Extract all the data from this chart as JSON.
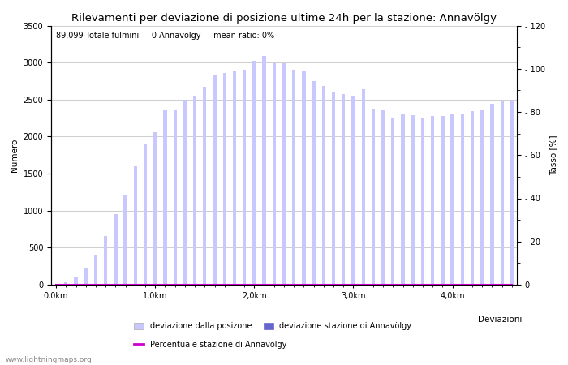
{
  "title": "Rilevamenti per deviazione di posizione ultime 24h per la stazione: Annavölgy",
  "subtitle": "89.099 Totale fulmini     0 Annavölgy     mean ratio: 0%",
  "ylabel_left": "Numero",
  "ylabel_right": "Tasso [%]",
  "watermark": "www.lightningmaps.org",
  "bar_total": [
    5,
    30,
    110,
    230,
    390,
    660,
    950,
    1220,
    1600,
    1900,
    2060,
    2350,
    2370,
    2500,
    2550,
    2670,
    2840,
    2860,
    2880,
    2900,
    3020,
    3090,
    2990,
    2990,
    2900,
    2890,
    2750,
    2680,
    2600,
    2570,
    2550,
    2640,
    2380,
    2360,
    2250,
    2310,
    2290,
    2260,
    2280,
    2280,
    2310,
    2310,
    2340,
    2360,
    2440,
    2490,
    2500
  ],
  "bar_station": [
    0,
    0,
    0,
    0,
    0,
    0,
    0,
    0,
    0,
    0,
    0,
    0,
    0,
    0,
    0,
    0,
    0,
    0,
    0,
    0,
    0,
    0,
    0,
    0,
    0,
    0,
    0,
    0,
    0,
    0,
    0,
    0,
    0,
    0,
    0,
    0,
    0,
    0,
    0,
    0,
    0,
    0,
    0,
    0,
    0,
    0,
    0
  ],
  "ratio_line": [
    0,
    0,
    0,
    0,
    0,
    0,
    0,
    0,
    0,
    0,
    0,
    0,
    0,
    0,
    0,
    0,
    0,
    0,
    0,
    0,
    0,
    0,
    0,
    0,
    0,
    0,
    0,
    0,
    0,
    0,
    0,
    0,
    0,
    0,
    0,
    0,
    0,
    0,
    0,
    0,
    0,
    0,
    0,
    0,
    0,
    0,
    0
  ],
  "bar_total_color": "#c8c8ff",
  "bar_station_color": "#6666cc",
  "ratio_line_color": "#cc00cc",
  "ylim_left": [
    0,
    3500
  ],
  "ylim_right": [
    0,
    120
  ],
  "yticks_left": [
    0,
    500,
    1000,
    1500,
    2000,
    2500,
    3000,
    3500
  ],
  "yticks_right_vals": [
    0,
    20,
    40,
    60,
    80,
    100,
    120
  ],
  "yticks_right_labels": [
    "0",
    "- 20",
    "- 40",
    "- 60",
    "- 80",
    "- 100",
    "- 120"
  ],
  "xtick_positions": [
    0,
    10,
    20,
    30,
    40
  ],
  "xtick_labels": [
    "0,0km",
    "1,0km",
    "2,0km",
    "3,0km",
    "4,0km"
  ],
  "grid_color": "#bbbbbb",
  "background_color": "#ffffff",
  "title_fontsize": 9.5,
  "axis_fontsize": 7.5,
  "tick_fontsize": 7,
  "legend_fontsize": 7,
  "subtitle_fontsize": 7
}
